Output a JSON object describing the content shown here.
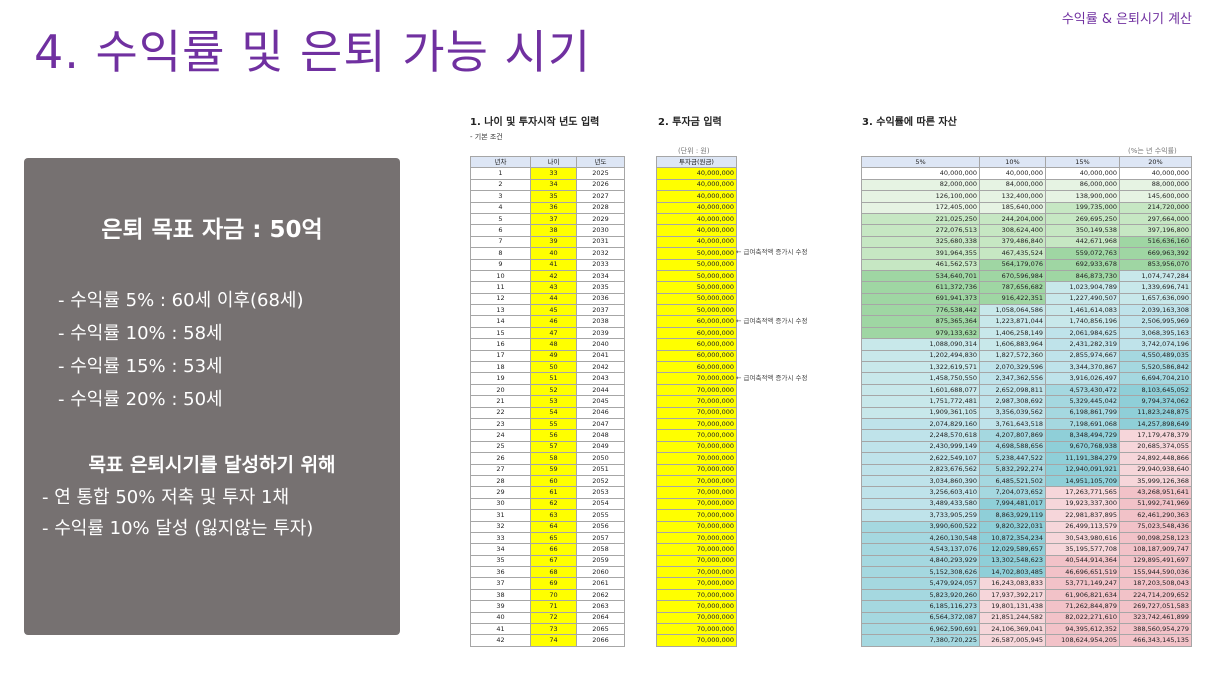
{
  "header": {
    "top_label": "수익률 & 은퇴시기 계산",
    "title": "4. 수익률 및 은퇴 가능 시기"
  },
  "summary": {
    "goal": "은퇴 목표 자금 : 50억",
    "rates": [
      "- 수익률  5% : 60세 이후(68세)",
      "- 수익률 10% : 58세",
      "- 수익률 15% : 53세",
      "- 수익률 20% : 50세"
    ],
    "goal2": "목표 은퇴시기를 달성하기 위해",
    "how": [
      "- 연 통합 50% 저축 및 투자 1채",
      "- 수익률 10% 달성 (잃지않는 투자)"
    ]
  },
  "section1": {
    "title": "1. 나이 및 투자시작 년도 입력",
    "sub": "- 기본 조건",
    "headers": [
      "년차",
      "나이",
      "년도"
    ]
  },
  "section2": {
    "title": "2. 투자금 입력",
    "unit": "(단위 : 원)",
    "header": "투자금(원금)"
  },
  "section3": {
    "title": "3. 수익률에 따른 자산",
    "unit": "(%는 년 수익률)",
    "headers": [
      "5%",
      "10%",
      "15%",
      "20%"
    ]
  },
  "side_note": "← 급여축적액 증가시 수정",
  "rows": [
    {
      "n": "1",
      "age": "33",
      "year": "2025",
      "inv": "40,000,000",
      "v": [
        "40,000,000",
        "40,000,000",
        "40,000,000",
        "40,000,000"
      ]
    },
    {
      "n": "2",
      "age": "34",
      "year": "2026",
      "inv": "40,000,000",
      "v": [
        "82,000,000",
        "84,000,000",
        "86,000,000",
        "88,000,000"
      ]
    },
    {
      "n": "3",
      "age": "35",
      "year": "2027",
      "inv": "40,000,000",
      "v": [
        "126,100,000",
        "132,400,000",
        "138,900,000",
        "145,600,000"
      ]
    },
    {
      "n": "4",
      "age": "36",
      "year": "2028",
      "inv": "40,000,000",
      "v": [
        "172,405,000",
        "185,640,000",
        "199,735,000",
        "214,720,000"
      ]
    },
    {
      "n": "5",
      "age": "37",
      "year": "2029",
      "inv": "40,000,000",
      "v": [
        "221,025,250",
        "244,204,000",
        "269,695,250",
        "297,664,000"
      ]
    },
    {
      "n": "6",
      "age": "38",
      "year": "2030",
      "inv": "40,000,000",
      "v": [
        "272,076,513",
        "308,624,400",
        "350,149,538",
        "397,196,800"
      ]
    },
    {
      "n": "7",
      "age": "39",
      "year": "2031",
      "inv": "40,000,000",
      "v": [
        "325,680,338",
        "379,486,840",
        "442,671,968",
        "516,636,160"
      ]
    },
    {
      "n": "8",
      "age": "40",
      "year": "2032",
      "inv": "50,000,000",
      "v": [
        "391,964,355",
        "467,435,524",
        "559,072,763",
        "669,963,392"
      ]
    },
    {
      "n": "9",
      "age": "41",
      "year": "2033",
      "inv": "50,000,000",
      "v": [
        "461,562,573",
        "564,179,076",
        "692,933,678",
        "853,956,070"
      ]
    },
    {
      "n": "10",
      "age": "42",
      "year": "2034",
      "inv": "50,000,000",
      "v": [
        "534,640,701",
        "670,596,984",
        "846,873,730",
        "1,074,747,284"
      ]
    },
    {
      "n": "11",
      "age": "43",
      "year": "2035",
      "inv": "50,000,000",
      "v": [
        "611,372,736",
        "787,656,682",
        "1,023,904,789",
        "1,339,696,741"
      ]
    },
    {
      "n": "12",
      "age": "44",
      "year": "2036",
      "inv": "50,000,000",
      "v": [
        "691,941,373",
        "916,422,351",
        "1,227,490,507",
        "1,657,636,090"
      ]
    },
    {
      "n": "13",
      "age": "45",
      "year": "2037",
      "inv": "50,000,000",
      "v": [
        "776,538,442",
        "1,058,064,586",
        "1,461,614,083",
        "2,039,163,308"
      ]
    },
    {
      "n": "14",
      "age": "46",
      "year": "2038",
      "inv": "60,000,000",
      "v": [
        "875,365,364",
        "1,223,871,044",
        "1,740,856,196",
        "2,506,995,969"
      ]
    },
    {
      "n": "15",
      "age": "47",
      "year": "2039",
      "inv": "60,000,000",
      "v": [
        "979,133,632",
        "1,406,258,149",
        "2,061,984,625",
        "3,068,395,163"
      ]
    },
    {
      "n": "16",
      "age": "48",
      "year": "2040",
      "inv": "60,000,000",
      "v": [
        "1,088,090,314",
        "1,606,883,964",
        "2,431,282,319",
        "3,742,074,196"
      ]
    },
    {
      "n": "17",
      "age": "49",
      "year": "2041",
      "inv": "60,000,000",
      "v": [
        "1,202,494,830",
        "1,827,572,360",
        "2,855,974,667",
        "4,550,489,035"
      ]
    },
    {
      "n": "18",
      "age": "50",
      "year": "2042",
      "inv": "60,000,000",
      "v": [
        "1,322,619,571",
        "2,070,329,596",
        "3,344,370,867",
        "5,520,586,842"
      ]
    },
    {
      "n": "19",
      "age": "51",
      "year": "2043",
      "inv": "70,000,000",
      "v": [
        "1,458,750,550",
        "2,347,362,556",
        "3,916,026,497",
        "6,694,704,210"
      ]
    },
    {
      "n": "20",
      "age": "52",
      "year": "2044",
      "inv": "70,000,000",
      "v": [
        "1,601,688,077",
        "2,652,098,811",
        "4,573,430,472",
        "8,103,645,052"
      ]
    },
    {
      "n": "21",
      "age": "53",
      "year": "2045",
      "inv": "70,000,000",
      "v": [
        "1,751,772,481",
        "2,987,308,692",
        "5,329,445,042",
        "9,794,374,062"
      ]
    },
    {
      "n": "22",
      "age": "54",
      "year": "2046",
      "inv": "70,000,000",
      "v": [
        "1,909,361,105",
        "3,356,039,562",
        "6,198,861,799",
        "11,823,248,875"
      ]
    },
    {
      "n": "23",
      "age": "55",
      "year": "2047",
      "inv": "70,000,000",
      "v": [
        "2,074,829,160",
        "3,761,643,518",
        "7,198,691,068",
        "14,257,898,649"
      ]
    },
    {
      "n": "24",
      "age": "56",
      "year": "2048",
      "inv": "70,000,000",
      "v": [
        "2,248,570,618",
        "4,207,807,869",
        "8,348,494,729",
        "17,179,478,379"
      ]
    },
    {
      "n": "25",
      "age": "57",
      "year": "2049",
      "inv": "70,000,000",
      "v": [
        "2,430,999,149",
        "4,698,588,656",
        "9,670,768,938",
        "20,685,374,055"
      ]
    },
    {
      "n": "26",
      "age": "58",
      "year": "2050",
      "inv": "70,000,000",
      "v": [
        "2,622,549,107",
        "5,238,447,522",
        "11,191,384,279",
        "24,892,448,866"
      ]
    },
    {
      "n": "27",
      "age": "59",
      "year": "2051",
      "inv": "70,000,000",
      "v": [
        "2,823,676,562",
        "5,832,292,274",
        "12,940,091,921",
        "29,940,938,640"
      ]
    },
    {
      "n": "28",
      "age": "60",
      "year": "2052",
      "inv": "70,000,000",
      "v": [
        "3,034,860,390",
        "6,485,521,502",
        "14,951,105,709",
        "35,999,126,368"
      ]
    },
    {
      "n": "29",
      "age": "61",
      "year": "2053",
      "inv": "70,000,000",
      "v": [
        "3,256,603,410",
        "7,204,073,652",
        "17,263,771,565",
        "43,268,951,641"
      ]
    },
    {
      "n": "30",
      "age": "62",
      "year": "2054",
      "inv": "70,000,000",
      "v": [
        "3,489,433,580",
        "7,994,481,017",
        "19,923,337,300",
        "51,992,741,969"
      ]
    },
    {
      "n": "31",
      "age": "63",
      "year": "2055",
      "inv": "70,000,000",
      "v": [
        "3,733,905,259",
        "8,863,929,119",
        "22,981,837,895",
        "62,461,290,363"
      ]
    },
    {
      "n": "32",
      "age": "64",
      "year": "2056",
      "inv": "70,000,000",
      "v": [
        "3,990,600,522",
        "9,820,322,031",
        "26,499,113,579",
        "75,023,548,436"
      ]
    },
    {
      "n": "33",
      "age": "65",
      "year": "2057",
      "inv": "70,000,000",
      "v": [
        "4,260,130,548",
        "10,872,354,234",
        "30,543,980,616",
        "90,098,258,123"
      ]
    },
    {
      "n": "34",
      "age": "66",
      "year": "2058",
      "inv": "70,000,000",
      "v": [
        "4,543,137,076",
        "12,029,589,657",
        "35,195,577,708",
        "108,187,909,747"
      ]
    },
    {
      "n": "35",
      "age": "67",
      "year": "2059",
      "inv": "70,000,000",
      "v": [
        "4,840,293,929",
        "13,302,548,623",
        "40,544,914,364",
        "129,895,491,697"
      ]
    },
    {
      "n": "36",
      "age": "68",
      "year": "2060",
      "inv": "70,000,000",
      "v": [
        "5,152,308,626",
        "14,702,803,485",
        "46,696,651,519",
        "155,944,590,036"
      ]
    },
    {
      "n": "37",
      "age": "69",
      "year": "2061",
      "inv": "70,000,000",
      "v": [
        "5,479,924,057",
        "16,243,083,833",
        "53,771,149,247",
        "187,203,508,043"
      ]
    },
    {
      "n": "38",
      "age": "70",
      "year": "2062",
      "inv": "70,000,000",
      "v": [
        "5,823,920,260",
        "17,937,392,217",
        "61,906,821,634",
        "224,714,209,652"
      ]
    },
    {
      "n": "39",
      "age": "71",
      "year": "2063",
      "inv": "70,000,000",
      "v": [
        "6,185,116,273",
        "19,801,131,438",
        "71,262,844,879",
        "269,727,051,583"
      ]
    },
    {
      "n": "40",
      "age": "72",
      "year": "2064",
      "inv": "70,000,000",
      "v": [
        "6,564,372,087",
        "21,851,244,582",
        "82,022,271,610",
        "323,742,461,899"
      ]
    },
    {
      "n": "41",
      "age": "73",
      "year": "2065",
      "inv": "70,000,000",
      "v": [
        "6,962,590,691",
        "24,106,369,041",
        "94,395,612,352",
        "388,560,954,279"
      ]
    },
    {
      "n": "42",
      "age": "74",
      "year": "2066",
      "inv": "70,000,000",
      "v": [
        "7,380,720,225",
        "26,587,005,945",
        "108,624,954,205",
        "466,343,145,135"
      ]
    }
  ]
}
